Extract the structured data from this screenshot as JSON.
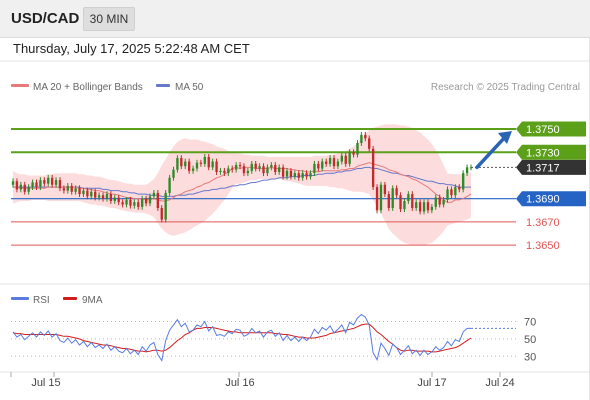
{
  "header": {
    "symbol": "USD/CAD",
    "timeframe": "30 MIN"
  },
  "timestamp": "Thursday, July 17, 2025 5:22:48 AM CET",
  "legend": {
    "ma20_bb": "MA 20 + Bollinger Bands",
    "ma50": "MA 50",
    "source": "Research © 2025 Trading Central",
    "rsi": "RSI",
    "rsi_ma": "9MA"
  },
  "colors": {
    "resistance": "#5ca019",
    "support": "#2563c4",
    "minor_level": "#e05555",
    "current": "#333333",
    "bollinger": "#fbd3d3",
    "ma20": "#e87a7a",
    "ma50": "#6677cc",
    "candle_up": "#2f8a28",
    "candle_down": "#c42a2a",
    "rsi": "#5a7be0",
    "rsi_ma": "#d41c1c",
    "arrow": "#2a62b4"
  },
  "chart_data": {
    "type": "candlestick",
    "ylim": [
      1.362,
      1.3775
    ],
    "x_ticks": [
      "Jul 15",
      "Jul 16",
      "Jul 17",
      "Jul 24"
    ],
    "levels": [
      {
        "value": 1.375,
        "label": "1.3750",
        "kind": "resistance",
        "badge": true
      },
      {
        "value": 1.373,
        "label": "1.3730",
        "kind": "resistance",
        "badge": true
      },
      {
        "value": 1.3717,
        "label": "1.3717",
        "kind": "current",
        "badge": true
      },
      {
        "value": 1.369,
        "label": "1.3690",
        "kind": "support",
        "badge": true
      },
      {
        "value": 1.367,
        "label": "1.3670",
        "kind": "minor",
        "badge": false
      },
      {
        "value": 1.365,
        "label": "1.3650",
        "kind": "minor",
        "badge": false
      }
    ],
    "projection": {
      "from": 1.3717,
      "to": 1.375
    },
    "close": [
      1.3705,
      1.3698,
      1.3702,
      1.3696,
      1.37,
      1.3704,
      1.37,
      1.3706,
      1.3703,
      1.3708,
      1.3702,
      1.3706,
      1.3699,
      1.3697,
      1.3701,
      1.3696,
      1.3699,
      1.3694,
      1.3697,
      1.3692,
      1.3696,
      1.3691,
      1.3693,
      1.369,
      1.3694,
      1.3688,
      1.3691,
      1.3687,
      1.3685,
      1.3689,
      1.3684,
      1.3687,
      1.3683,
      1.369,
      1.3686,
      1.3692,
      1.3695,
      1.3682,
      1.3672,
      1.3695,
      1.3708,
      1.3715,
      1.3725,
      1.3718,
      1.3722,
      1.3714,
      1.3716,
      1.3721,
      1.372,
      1.3726,
      1.3717,
      1.3722,
      1.3713,
      1.3714,
      1.3712,
      1.3716,
      1.3715,
      1.3719,
      1.3718,
      1.3712,
      1.3714,
      1.372,
      1.3716,
      1.3718,
      1.3712,
      1.3717,
      1.3719,
      1.3713,
      1.3717,
      1.3709,
      1.3714,
      1.3709,
      1.3712,
      1.3708,
      1.3712,
      1.3709,
      1.3712,
      1.372,
      1.3716,
      1.3722,
      1.372,
      1.3725,
      1.3718,
      1.3722,
      1.3727,
      1.372,
      1.373,
      1.3728,
      1.3738,
      1.3745,
      1.3742,
      1.3733,
      1.37,
      1.368,
      1.3702,
      1.3694,
      1.3682,
      1.3699,
      1.3693,
      1.3681,
      1.3688,
      1.3694,
      1.3682,
      1.3687,
      1.3679,
      1.3687,
      1.368,
      1.3683,
      1.3691,
      1.3685,
      1.3689,
      1.3698,
      1.3693,
      1.37,
      1.3698,
      1.3712,
      1.3717,
      1.3717
    ],
    "ma20": [
      1.37,
      1.37,
      1.3699,
      1.3699,
      1.3699,
      1.3699,
      1.3699,
      1.3699,
      1.3699,
      1.37,
      1.37,
      1.37,
      1.37,
      1.37,
      1.37,
      1.37,
      1.37,
      1.3699,
      1.3699,
      1.3698,
      1.3698,
      1.3697,
      1.3697,
      1.3696,
      1.3695,
      1.3694,
      1.3694,
      1.3693,
      1.3692,
      1.3691,
      1.3691,
      1.369,
      1.369,
      1.369,
      1.3689,
      1.3689,
      1.369,
      1.3689,
      1.3688,
      1.3688,
      1.3689,
      1.3691,
      1.3693,
      1.3694,
      1.3696,
      1.3697,
      1.3698,
      1.37,
      1.3701,
      1.3703,
      1.3704,
      1.3706,
      1.3708,
      1.3709,
      1.3711,
      1.3713,
      1.3716,
      1.3717,
      1.3716,
      1.3717,
      1.3717,
      1.3717,
      1.3716,
      1.3716,
      1.3716,
      1.3716,
      1.3717,
      1.3716,
      1.3716,
      1.3716,
      1.3716,
      1.3715,
      1.3715,
      1.3714,
      1.3714,
      1.3713,
      1.3713,
      1.3714,
      1.3713,
      1.3714,
      1.3714,
      1.3714,
      1.3714,
      1.3714,
      1.3715,
      1.3715,
      1.3716,
      1.3716,
      1.3718,
      1.3719,
      1.372,
      1.3721,
      1.372,
      1.3719,
      1.3718,
      1.3717,
      1.3715,
      1.3714,
      1.3713,
      1.3711,
      1.371,
      1.3709,
      1.3707,
      1.3706,
      1.3704,
      1.3702,
      1.37,
      1.3697,
      1.3694,
      1.3692,
      1.3689,
      1.3687,
      1.3687,
      1.3689,
      1.3689,
      1.369,
      1.3692,
      1.3694
    ],
    "ma50": [
      1.37,
      1.37,
      1.37,
      1.37,
      1.37,
      1.37,
      1.37,
      1.37,
      1.37,
      1.37,
      1.37,
      1.37,
      1.37,
      1.37,
      1.37,
      1.37,
      1.37,
      1.37,
      1.3699,
      1.3699,
      1.3699,
      1.3699,
      1.3699,
      1.3698,
      1.3698,
      1.3697,
      1.3697,
      1.3697,
      1.3696,
      1.3696,
      1.3695,
      1.3695,
      1.3694,
      1.3694,
      1.3694,
      1.3693,
      1.3693,
      1.3693,
      1.3692,
      1.3692,
      1.3692,
      1.3692,
      1.3693,
      1.3693,
      1.3693,
      1.3694,
      1.3694,
      1.3695,
      1.3696,
      1.3697,
      1.3697,
      1.3698,
      1.3698,
      1.3699,
      1.3699,
      1.37,
      1.3701,
      1.3701,
      1.3702,
      1.3702,
      1.3703,
      1.3704,
      1.3704,
      1.3705,
      1.3706,
      1.3706,
      1.3707,
      1.3707,
      1.3708,
      1.3708,
      1.3708,
      1.3709,
      1.3709,
      1.3709,
      1.371,
      1.371,
      1.371,
      1.371,
      1.3711,
      1.3711,
      1.3712,
      1.3712,
      1.3712,
      1.3713,
      1.3713,
      1.3714,
      1.3714,
      1.3715,
      1.3716,
      1.3716,
      1.3717,
      1.3717,
      1.3716,
      1.3716,
      1.3715,
      1.3714,
      1.3713,
      1.3712,
      1.3712,
      1.3711,
      1.371,
      1.371,
      1.3709,
      1.3708,
      1.3707,
      1.3706,
      1.3705,
      1.3705,
      1.3704,
      1.3703,
      1.3703,
      1.3702,
      1.3702,
      1.3701,
      1.37,
      1.37,
      1.37,
      1.37
    ],
    "bb_upper": [
      1.3714,
      1.3712,
      1.3711,
      1.3711,
      1.371,
      1.371,
      1.371,
      1.371,
      1.371,
      1.3711,
      1.3711,
      1.3712,
      1.3712,
      1.3712,
      1.3712,
      1.3712,
      1.3712,
      1.3711,
      1.3711,
      1.371,
      1.371,
      1.3709,
      1.3709,
      1.3708,
      1.3707,
      1.3706,
      1.3706,
      1.3705,
      1.3704,
      1.3703,
      1.3703,
      1.3702,
      1.3702,
      1.3702,
      1.3702,
      1.3704,
      1.3707,
      1.3712,
      1.3719,
      1.3724,
      1.373,
      1.3735,
      1.3739,
      1.3741,
      1.3742,
      1.3741,
      1.3741,
      1.3741,
      1.374,
      1.3739,
      1.3738,
      1.3737,
      1.3735,
      1.3734,
      1.3733,
      1.3731,
      1.373,
      1.3729,
      1.3729,
      1.3728,
      1.3728,
      1.3727,
      1.3727,
      1.3727,
      1.3727,
      1.3726,
      1.3726,
      1.3726,
      1.3726,
      1.3726,
      1.3726,
      1.3726,
      1.3726,
      1.3726,
      1.3726,
      1.3726,
      1.3726,
      1.3727,
      1.3727,
      1.3727,
      1.3727,
      1.3728,
      1.3728,
      1.3729,
      1.373,
      1.3731,
      1.3733,
      1.3735,
      1.3738,
      1.3742,
      1.3746,
      1.3749,
      1.3751,
      1.3752,
      1.3753,
      1.3754,
      1.3754,
      1.3754,
      1.3754,
      1.3753,
      1.3753,
      1.3752,
      1.3751,
      1.3749,
      1.3747,
      1.3744,
      1.3741,
      1.3737,
      1.3732,
      1.3726,
      1.3719,
      1.3712,
      1.3711,
      1.3711,
      1.3711,
      1.3711,
      1.3712,
      1.3713
    ],
    "bb_lower": [
      1.3686,
      1.3687,
      1.3688,
      1.3688,
      1.3688,
      1.3689,
      1.3689,
      1.3689,
      1.3689,
      1.3688,
      1.3688,
      1.3688,
      1.3688,
      1.3688,
      1.3688,
      1.3688,
      1.3688,
      1.3688,
      1.3687,
      1.3686,
      1.3685,
      1.3685,
      1.3684,
      1.3684,
      1.3683,
      1.3682,
      1.3682,
      1.3681,
      1.368,
      1.3679,
      1.3679,
      1.3678,
      1.3678,
      1.3678,
      1.3677,
      1.3676,
      1.3674,
      1.3669,
      1.3664,
      1.3661,
      1.3659,
      1.3658,
      1.3659,
      1.366,
      1.3661,
      1.3663,
      1.3665,
      1.3667,
      1.3669,
      1.3671,
      1.3674,
      1.3677,
      1.3681,
      1.3685,
      1.3689,
      1.3694,
      1.3699,
      1.3703,
      1.3703,
      1.3704,
      1.3705,
      1.3706,
      1.3706,
      1.3707,
      1.3707,
      1.3707,
      1.3707,
      1.3707,
      1.3707,
      1.3706,
      1.3705,
      1.3705,
      1.3704,
      1.3703,
      1.3702,
      1.3701,
      1.3701,
      1.3701,
      1.3701,
      1.3701,
      1.3701,
      1.37,
      1.37,
      1.3699,
      1.3699,
      1.3698,
      1.3697,
      1.3696,
      1.3696,
      1.3696,
      1.3695,
      1.3694,
      1.3689,
      1.3683,
      1.3677,
      1.3671,
      1.3664,
      1.366,
      1.3657,
      1.3654,
      1.3652,
      1.3651,
      1.365,
      1.365,
      1.365,
      1.365,
      1.3651,
      1.3652,
      1.3655,
      1.3658,
      1.3662,
      1.3667,
      1.3668,
      1.3669,
      1.367,
      1.3671,
      1.3672,
      1.3674
    ],
    "rsi": {
      "ticks": [
        "70",
        "50",
        "30"
      ],
      "ylim": [
        20,
        82
      ],
      "rsi": [
        58,
        52,
        55,
        49,
        53,
        57,
        52,
        58,
        54,
        59,
        52,
        56,
        48,
        46,
        51,
        45,
        49,
        43,
        47,
        41,
        46,
        40,
        43,
        39,
        44,
        37,
        41,
        36,
        34,
        39,
        33,
        37,
        32,
        41,
        36,
        43,
        46,
        32,
        25,
        48,
        60,
        66,
        72,
        64,
        68,
        58,
        60,
        66,
        64,
        70,
        59,
        64,
        54,
        55,
        53,
        58,
        56,
        61,
        60,
        53,
        55,
        62,
        57,
        59,
        52,
        58,
        60,
        53,
        57,
        48,
        54,
        48,
        52,
        47,
        52,
        48,
        52,
        61,
        56,
        63,
        60,
        65,
        57,
        61,
        66,
        57,
        69,
        66,
        74,
        78,
        75,
        66,
        34,
        26,
        45,
        39,
        31,
        44,
        40,
        32,
        37,
        42,
        33,
        37,
        31,
        37,
        32,
        35,
        41,
        37,
        40,
        47,
        42,
        49,
        47,
        58,
        62,
        62
      ],
      "ma9": [
        57,
        56,
        56,
        55,
        55,
        55,
        55,
        55,
        55,
        55,
        55,
        55,
        54,
        53,
        53,
        52,
        51,
        50,
        48,
        47,
        46,
        45,
        44,
        43,
        43,
        42,
        41,
        40,
        39,
        39,
        38,
        37,
        36,
        36,
        35,
        36,
        37,
        37,
        36,
        37,
        40,
        44,
        48,
        51,
        55,
        57,
        60,
        62,
        62,
        63,
        63,
        63,
        62,
        61,
        60,
        59,
        58,
        58,
        57,
        57,
        57,
        57,
        57,
        57,
        57,
        57,
        57,
        56,
        56,
        55,
        55,
        54,
        53,
        52,
        52,
        51,
        51,
        51,
        52,
        53,
        54,
        56,
        57,
        58,
        59,
        60,
        61,
        62,
        64,
        66,
        67,
        67,
        63,
        58,
        55,
        51,
        47,
        44,
        40,
        37,
        36,
        37,
        37,
        36,
        36,
        36,
        36,
        35,
        35,
        36,
        37,
        38,
        39,
        40,
        42,
        45,
        48,
        51
      ]
    }
  }
}
